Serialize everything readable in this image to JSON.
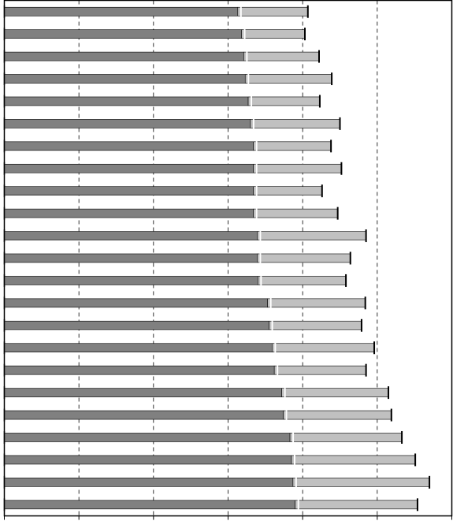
{
  "chart_data": {
    "type": "bar",
    "orientation": "horizontal",
    "stacked": true,
    "title": "",
    "xlabel": "",
    "ylabel": "",
    "xlim": [
      0,
      6
    ],
    "grid": true,
    "grid_style": "dashed-vertical",
    "legend": "none",
    "colors": {
      "first": "#808080",
      "second": "#c0c0c0",
      "error_bar": "#000000",
      "grid": "#000000"
    },
    "series": [
      {
        "name": "",
        "values": [
          3.13,
          3.18,
          3.21,
          3.23,
          3.27,
          3.3,
          3.34,
          3.34,
          3.34,
          3.34,
          3.39,
          3.39,
          3.4,
          3.53,
          3.55,
          3.59,
          3.62,
          3.72,
          3.74,
          3.83,
          3.85,
          3.87,
          3.9
        ]
      },
      {
        "name": "",
        "values": [
          0.94,
          0.85,
          1.01,
          1.16,
          0.96,
          1.2,
          1.04,
          1.18,
          0.92,
          1.13,
          1.46,
          1.25,
          1.18,
          1.31,
          1.24,
          1.37,
          1.23,
          1.43,
          1.45,
          1.5,
          1.66,
          1.83,
          1.64
        ]
      }
    ]
  }
}
